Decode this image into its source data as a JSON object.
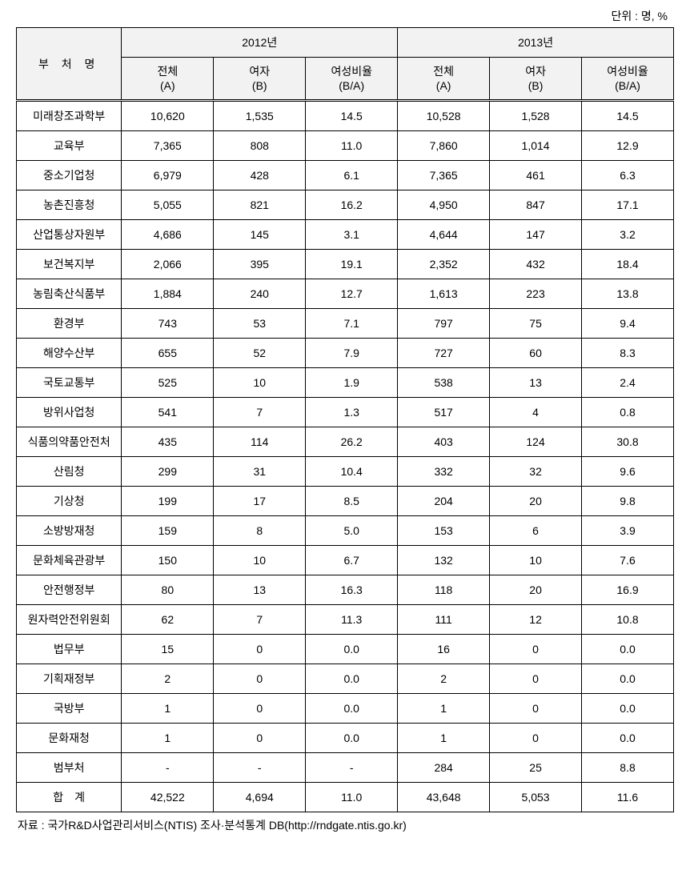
{
  "unit_label": "단위 : 명, %",
  "table": {
    "header": {
      "dept_label": "부 처 명",
      "year1": "2012년",
      "year2": "2013년",
      "sub_total_1": "전체",
      "sub_total_2": "(A)",
      "sub_female_1": "여자",
      "sub_female_2": "(B)",
      "sub_ratio_1": "여성비율",
      "sub_ratio_2": "(B/A)"
    },
    "rows": [
      {
        "dept": "미래창조과학부",
        "y1_total": "10,620",
        "y1_fem": "1,535",
        "y1_ratio": "14.5",
        "y2_total": "10,528",
        "y2_fem": "1,528",
        "y2_ratio": "14.5"
      },
      {
        "dept": "교육부",
        "y1_total": "7,365",
        "y1_fem": "808",
        "y1_ratio": "11.0",
        "y2_total": "7,860",
        "y2_fem": "1,014",
        "y2_ratio": "12.9"
      },
      {
        "dept": "중소기업청",
        "y1_total": "6,979",
        "y1_fem": "428",
        "y1_ratio": "6.1",
        "y2_total": "7,365",
        "y2_fem": "461",
        "y2_ratio": "6.3"
      },
      {
        "dept": "농촌진흥청",
        "y1_total": "5,055",
        "y1_fem": "821",
        "y1_ratio": "16.2",
        "y2_total": "4,950",
        "y2_fem": "847",
        "y2_ratio": "17.1"
      },
      {
        "dept": "산업통상자원부",
        "y1_total": "4,686",
        "y1_fem": "145",
        "y1_ratio": "3.1",
        "y2_total": "4,644",
        "y2_fem": "147",
        "y2_ratio": "3.2"
      },
      {
        "dept": "보건복지부",
        "y1_total": "2,066",
        "y1_fem": "395",
        "y1_ratio": "19.1",
        "y2_total": "2,352",
        "y2_fem": "432",
        "y2_ratio": "18.4"
      },
      {
        "dept": "농림축산식품부",
        "y1_total": "1,884",
        "y1_fem": "240",
        "y1_ratio": "12.7",
        "y2_total": "1,613",
        "y2_fem": "223",
        "y2_ratio": "13.8"
      },
      {
        "dept": "환경부",
        "y1_total": "743",
        "y1_fem": "53",
        "y1_ratio": "7.1",
        "y2_total": "797",
        "y2_fem": "75",
        "y2_ratio": "9.4"
      },
      {
        "dept": "해양수산부",
        "y1_total": "655",
        "y1_fem": "52",
        "y1_ratio": "7.9",
        "y2_total": "727",
        "y2_fem": "60",
        "y2_ratio": "8.3"
      },
      {
        "dept": "국토교통부",
        "y1_total": "525",
        "y1_fem": "10",
        "y1_ratio": "1.9",
        "y2_total": "538",
        "y2_fem": "13",
        "y2_ratio": "2.4"
      },
      {
        "dept": "방위사업청",
        "y1_total": "541",
        "y1_fem": "7",
        "y1_ratio": "1.3",
        "y2_total": "517",
        "y2_fem": "4",
        "y2_ratio": "0.8"
      },
      {
        "dept": "식품의약품안전처",
        "y1_total": "435",
        "y1_fem": "114",
        "y1_ratio": "26.2",
        "y2_total": "403",
        "y2_fem": "124",
        "y2_ratio": "30.8"
      },
      {
        "dept": "산림청",
        "y1_total": "299",
        "y1_fem": "31",
        "y1_ratio": "10.4",
        "y2_total": "332",
        "y2_fem": "32",
        "y2_ratio": "9.6"
      },
      {
        "dept": "기상청",
        "y1_total": "199",
        "y1_fem": "17",
        "y1_ratio": "8.5",
        "y2_total": "204",
        "y2_fem": "20",
        "y2_ratio": "9.8"
      },
      {
        "dept": "소방방재청",
        "y1_total": "159",
        "y1_fem": "8",
        "y1_ratio": "5.0",
        "y2_total": "153",
        "y2_fem": "6",
        "y2_ratio": "3.9"
      },
      {
        "dept": "문화체육관광부",
        "y1_total": "150",
        "y1_fem": "10",
        "y1_ratio": "6.7",
        "y2_total": "132",
        "y2_fem": "10",
        "y2_ratio": "7.6"
      },
      {
        "dept": "안전행정부",
        "y1_total": "80",
        "y1_fem": "13",
        "y1_ratio": "16.3",
        "y2_total": "118",
        "y2_fem": "20",
        "y2_ratio": "16.9"
      },
      {
        "dept": "원자력안전위원회",
        "y1_total": "62",
        "y1_fem": "7",
        "y1_ratio": "11.3",
        "y2_total": "111",
        "y2_fem": "12",
        "y2_ratio": "10.8"
      },
      {
        "dept": "법무부",
        "y1_total": "15",
        "y1_fem": "0",
        "y1_ratio": "0.0",
        "y2_total": "16",
        "y2_fem": "0",
        "y2_ratio": "0.0"
      },
      {
        "dept": "기획재정부",
        "y1_total": "2",
        "y1_fem": "0",
        "y1_ratio": "0.0",
        "y2_total": "2",
        "y2_fem": "0",
        "y2_ratio": "0.0"
      },
      {
        "dept": "국방부",
        "y1_total": "1",
        "y1_fem": "0",
        "y1_ratio": "0.0",
        "y2_total": "1",
        "y2_fem": "0",
        "y2_ratio": "0.0"
      },
      {
        "dept": "문화재청",
        "y1_total": "1",
        "y1_fem": "0",
        "y1_ratio": "0.0",
        "y2_total": "1",
        "y2_fem": "0",
        "y2_ratio": "0.0"
      },
      {
        "dept": "범부처",
        "y1_total": "-",
        "y1_fem": "-",
        "y1_ratio": "-",
        "y2_total": "284",
        "y2_fem": "25",
        "y2_ratio": "8.8"
      },
      {
        "dept": "합　계",
        "y1_total": "42,522",
        "y1_fem": "4,694",
        "y1_ratio": "11.0",
        "y2_total": "43,648",
        "y2_fem": "5,053",
        "y2_ratio": "11.6"
      }
    ]
  },
  "source_label": "자료 : 국가R&D사업관리서비스(NTIS) 조사·분석통계 DB(http://rndgate.ntis.go.kr)",
  "styling": {
    "background_color": "#ffffff",
    "header_bg": "#f2f2f2",
    "border_color": "#000000",
    "text_color": "#000000",
    "font_size_body": 14,
    "font_size_header": 14
  }
}
